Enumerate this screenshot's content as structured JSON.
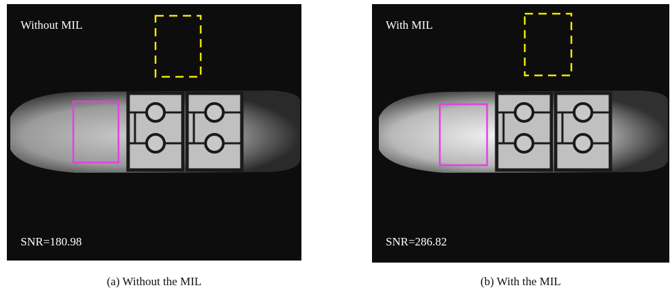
{
  "panels": [
    {
      "label": "Without MIL",
      "snr": "SNR=180.98",
      "caption": "(a) Without the MIL"
    },
    {
      "label": "With MIL",
      "snr": "SNR=286.82",
      "caption": "(b) With the MIL"
    }
  ]
}
